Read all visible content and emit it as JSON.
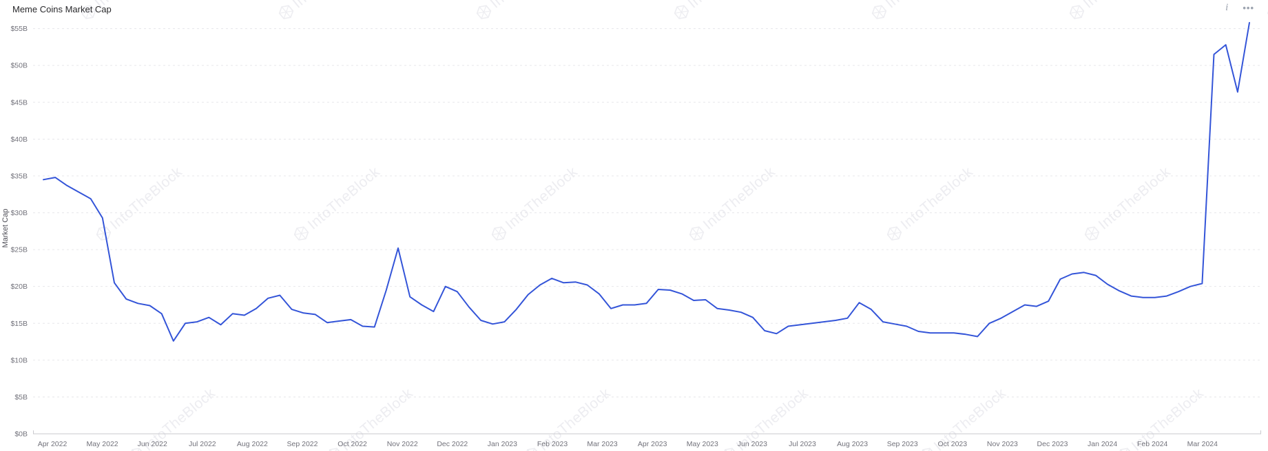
{
  "header": {
    "title": "Meme Coins Market Cap",
    "info_icon_glyph": "i",
    "more_icon_glyph": "•••"
  },
  "watermark": {
    "text": "IntoTheBlock",
    "color": "#ededf1"
  },
  "colors": {
    "line": "#3354d8",
    "axis_label": "#71717a",
    "axis_line": "#c9c9ce",
    "gridline": "#e6e6ea",
    "y_axis_title": "#52525b",
    "title_text": "#27272a",
    "icon_gray": "#9ca3af"
  },
  "chart_data": {
    "type": "line",
    "title": "Meme Coins Market Cap",
    "xlabel": "",
    "ylabel": "Market Cap",
    "ylim": [
      0,
      55
    ],
    "grid": true,
    "legend_position": "none",
    "y_tick_labels": [
      "$0B",
      "$5B",
      "$10B",
      "$15B",
      "$20B",
      "$25B",
      "$30B",
      "$35B",
      "$40B",
      "$45B",
      "$50B",
      "$55B"
    ],
    "x_tick_labels": [
      "Apr 2022",
      "May 2022",
      "Jun 2022",
      "Jul 2022",
      "Aug 2022",
      "Sep 2022",
      "Oct 2022",
      "Nov 2022",
      "Dec 2022",
      "Jan 2023",
      "Feb 2023",
      "Mar 2023",
      "Apr 2023",
      "May 2023",
      "Jun 2023",
      "Jul 2023",
      "Aug 2023",
      "Sep 2023",
      "Oct 2023",
      "Nov 2023",
      "Dec 2023",
      "Jan 2024",
      "Feb 2024",
      "Mar 2024"
    ],
    "x_range": [
      "Apr 2022",
      "Mar 2024"
    ],
    "sampling": "weekly",
    "unit": "USD billions",
    "series": [
      {
        "name": "Meme Coins Market Cap",
        "values_billions_usd": [
          34.5,
          34.8,
          33.7,
          32.8,
          31.9,
          29.3,
          20.5,
          18.3,
          17.7,
          17.4,
          16.3,
          12.6,
          15.0,
          15.2,
          15.8,
          14.8,
          16.3,
          16.1,
          17.0,
          18.4,
          18.8,
          16.9,
          16.4,
          16.2,
          15.1,
          15.3,
          15.5,
          14.6,
          14.5,
          19.5,
          25.2,
          18.6,
          17.5,
          16.6,
          20.0,
          19.3,
          17.2,
          15.4,
          14.9,
          15.2,
          16.9,
          18.9,
          20.2,
          21.1,
          20.5,
          20.6,
          20.2,
          19.0,
          17.0,
          17.5,
          17.5,
          17.7,
          19.6,
          19.5,
          19.0,
          18.1,
          18.2,
          17.0,
          16.8,
          16.5,
          15.8,
          14.0,
          13.6,
          14.6,
          14.8,
          15.0,
          15.2,
          15.4,
          15.7,
          17.8,
          16.9,
          15.2,
          14.9,
          14.6,
          13.9,
          13.7,
          13.7,
          13.7,
          13.5,
          13.2,
          15.0,
          15.7,
          16.6,
          17.5,
          17.3,
          18.0,
          21.0,
          21.7,
          21.9,
          21.5,
          20.3,
          19.4,
          18.7,
          18.5,
          18.5,
          18.7,
          19.3,
          20.0,
          20.4,
          51.5,
          52.8,
          46.4,
          55.8
        ]
      }
    ]
  }
}
